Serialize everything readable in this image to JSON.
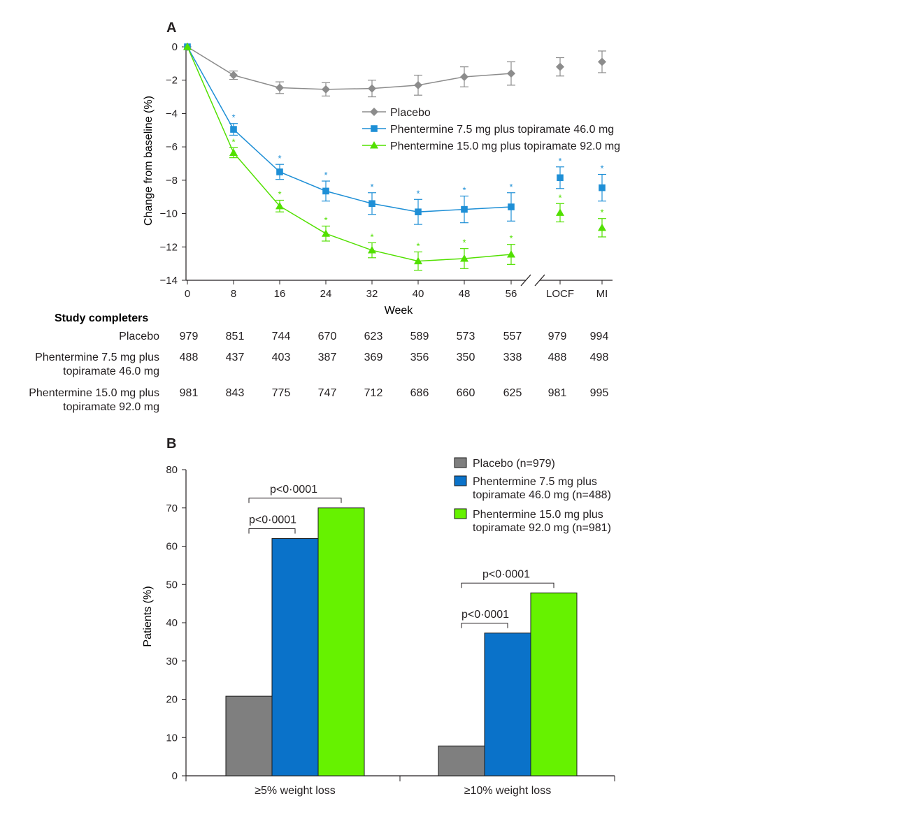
{
  "colors": {
    "placebo": "#8c8c8c",
    "low": "#1e8fd6",
    "high": "#52e000",
    "bar_placebo": "#7f7f7f",
    "bar_low": "#0a72c9",
    "bar_high": "#66f200",
    "axis": "#231f20"
  },
  "chart_data": [
    {
      "type": "line",
      "panel_label": "A",
      "ylabel": "Change from baseline (%)",
      "xlabel": "Week",
      "x": [
        "0",
        "8",
        "16",
        "24",
        "32",
        "40",
        "48",
        "56",
        "LOCF",
        "MI"
      ],
      "ylim": [
        -14,
        0
      ],
      "yticks": [
        0,
        -2,
        -4,
        -6,
        -8,
        -10,
        -12,
        -14
      ],
      "y_tick_labels": [
        "0",
        "−2",
        "−4",
        "−6",
        "−8",
        "−10",
        "−12",
        "−14"
      ],
      "axis_break_after": "56",
      "significance_marker": "*",
      "series": [
        {
          "name": "Placebo",
          "marker": "diamond",
          "values": [
            0,
            -1.7,
            -2.45,
            -2.55,
            -2.5,
            -2.3,
            -1.8,
            -1.6,
            -1.2,
            -0.9
          ],
          "err": [
            0,
            0.25,
            0.35,
            0.4,
            0.5,
            0.6,
            0.6,
            0.7,
            0.55,
            0.65
          ],
          "significant": [
            false,
            false,
            false,
            false,
            false,
            false,
            false,
            false,
            false,
            false
          ],
          "connected_through": "56"
        },
        {
          "name": "Phentermine 7.5 mg plus topiramate 46.0 mg",
          "marker": "square",
          "values": [
            0,
            -4.95,
            -7.5,
            -8.65,
            -9.4,
            -9.9,
            -9.75,
            -9.6,
            -7.85,
            -8.45
          ],
          "err": [
            0,
            0.35,
            0.45,
            0.6,
            0.65,
            0.75,
            0.8,
            0.85,
            0.65,
            0.8
          ],
          "significant": [
            false,
            true,
            true,
            true,
            true,
            true,
            true,
            true,
            true,
            true
          ],
          "connected_through": "56"
        },
        {
          "name": "Phentermine 15.0 mg plus topiramate 92.0 mg",
          "marker": "triangle",
          "values": [
            0,
            -6.35,
            -9.55,
            -11.2,
            -12.2,
            -12.85,
            -12.7,
            -12.45,
            -9.95,
            -10.85
          ],
          "err": [
            0,
            0.3,
            0.35,
            0.45,
            0.45,
            0.55,
            0.6,
            0.6,
            0.55,
            0.55
          ],
          "significant": [
            false,
            true,
            true,
            true,
            true,
            true,
            true,
            true,
            true,
            true
          ],
          "connected_through": "56"
        }
      ],
      "legend_position": "center-right"
    },
    {
      "type": "table",
      "title": "Study completers",
      "rows": [
        {
          "label": [
            "Placebo"
          ],
          "values": [
            "979",
            "851",
            "744",
            "670",
            "623",
            "589",
            "573",
            "557",
            "979",
            "994"
          ]
        },
        {
          "label": [
            "Phentermine 7.5 mg plus",
            "topiramate 46.0 mg"
          ],
          "values": [
            "488",
            "437",
            "403",
            "387",
            "369",
            "356",
            "350",
            "338",
            "488",
            "498"
          ]
        },
        {
          "label": [
            "Phentermine 15.0 mg plus",
            "topiramate 92.0 mg"
          ],
          "values": [
            "981",
            "843",
            "775",
            "747",
            "712",
            "686",
            "660",
            "625",
            "981",
            "995"
          ]
        }
      ]
    },
    {
      "type": "bar",
      "panel_label": "B",
      "ylabel": "Patients (%)",
      "categories": [
        "≥5% weight loss",
        "≥10% weight loss"
      ],
      "ylim": [
        0,
        80
      ],
      "yticks": [
        0,
        10,
        20,
        30,
        40,
        50,
        60,
        70,
        80
      ],
      "series": [
        {
          "legend": [
            "Placebo (n=979)"
          ],
          "values": [
            20.8,
            7.8
          ]
        },
        {
          "legend": [
            "Phentermine 7.5 mg plus",
            "topiramate 46.0 mg (n=488)"
          ],
          "values": [
            62,
            37.3
          ]
        },
        {
          "legend": [
            "Phentermine 15.0 mg plus",
            "topiramate 92.0 mg (n=981)"
          ],
          "values": [
            70,
            47.8
          ]
        }
      ],
      "annotations": [
        {
          "category": 0,
          "from_series": 0,
          "to_series": 1,
          "text": "p<0·0001"
        },
        {
          "category": 0,
          "from_series": 0,
          "to_series": 2,
          "text": "p<0·0001"
        },
        {
          "category": 1,
          "from_series": 0,
          "to_series": 1,
          "text": "p<0·0001"
        },
        {
          "category": 1,
          "from_series": 0,
          "to_series": 2,
          "text": "p<0·0001"
        }
      ],
      "legend_position": "top-right"
    }
  ]
}
